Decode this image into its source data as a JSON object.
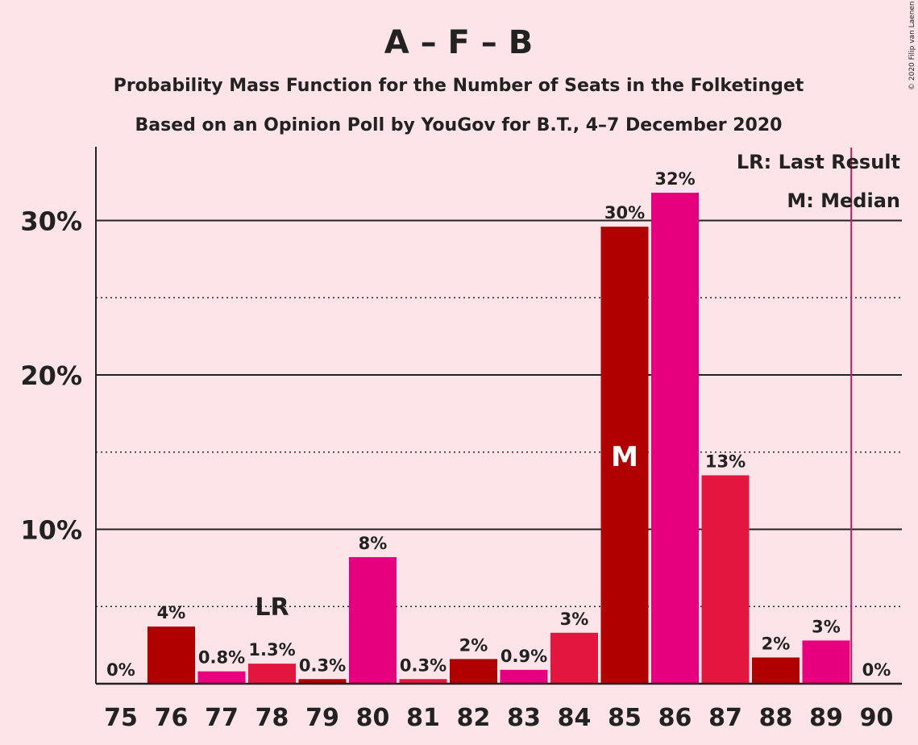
{
  "chart_data": {
    "type": "bar",
    "title": "A – F – B",
    "subtitle_1": "Probability Mass Function for the Number of Seats in the Folketinget",
    "subtitle_2": "Based on an Opinion Poll by YouGov for B.T., 4–7 December 2020",
    "copyright": "© 2020 Filip van Laenen",
    "categories": [
      "75",
      "76",
      "77",
      "78",
      "79",
      "80",
      "81",
      "82",
      "83",
      "84",
      "85",
      "86",
      "87",
      "88",
      "89",
      "90"
    ],
    "values": [
      0,
      3.7,
      0.8,
      1.3,
      0.3,
      8.2,
      0.3,
      1.6,
      0.9,
      3.3,
      29.6,
      31.8,
      13.5,
      1.7,
      2.8,
      0
    ],
    "value_labels": [
      "0%",
      "4%",
      "0.8%",
      "1.3%",
      "0.3%",
      "8%",
      "0.3%",
      "2%",
      "0.9%",
      "3%",
      "30%",
      "32%",
      "13%",
      "2%",
      "3%",
      "0%"
    ],
    "bar_colors": [
      "#b00000",
      "#b00000",
      "#e6007e",
      "#e3163f",
      "#b00000",
      "#e6007e",
      "#e3163f",
      "#b00000",
      "#e6007e",
      "#e3163f",
      "#b00000",
      "#e6007e",
      "#e3163f",
      "#b00000",
      "#e6007e",
      "#e3163f"
    ],
    "ylim": [
      0,
      34
    ],
    "yticks": [
      10,
      20,
      30
    ],
    "ytick_labels": [
      "10%",
      "20%",
      "30%"
    ],
    "dotted_gridlines": [
      5,
      15,
      25
    ],
    "last_result": {
      "seat": "78",
      "marker": "LR"
    },
    "median": {
      "seat": "85",
      "marker": "M"
    },
    "majority_line_after_seat": "89",
    "majority_line_color": "#c2185b",
    "legend": {
      "placement": "top-right",
      "items": [
        "LR: Last Result",
        "M: Median"
      ]
    }
  }
}
